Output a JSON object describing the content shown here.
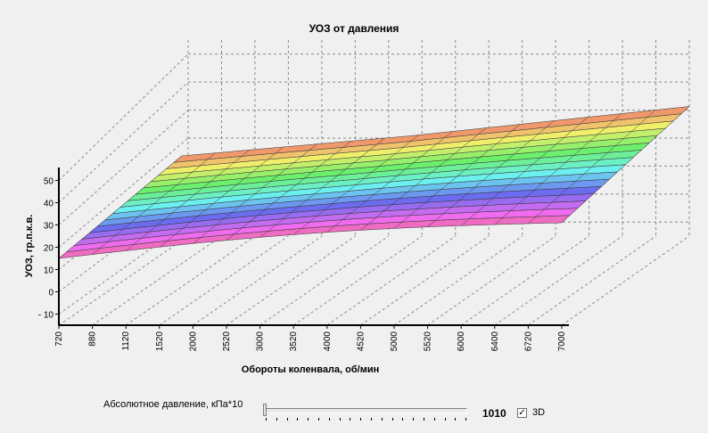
{
  "chart_data": {
    "type": "surface",
    "title": "УОЗ от давления",
    "xlabel": "Обороты коленвала, об/мин",
    "ylabel": "УОЗ, гр.п.к.в.",
    "x_ticks": [
      "720",
      "880",
      "1120",
      "1520",
      "2000",
      "2520",
      "3000",
      "3520",
      "4000",
      "4520",
      "5000",
      "5520",
      "6000",
      "6400",
      "6720",
      "7000"
    ],
    "y_ticks": [
      "50",
      "40",
      "30",
      "20",
      "10",
      "0",
      "- 10"
    ],
    "ylim": [
      -15,
      55
    ],
    "depth_lines": 16,
    "surface_note": "layers of rising UOZ vs RPM, colored rainbow bands",
    "grid": true
  },
  "controls": {
    "pressure_label": "Абсолютное давление, кПа*10",
    "pressure_value": "1010",
    "checkbox_mark": "✓",
    "checkbox_label": "3D"
  },
  "colors": {
    "background": "#f0f0f0",
    "grid_dash": "#8a8a8a",
    "surface_edge": "#333333"
  }
}
